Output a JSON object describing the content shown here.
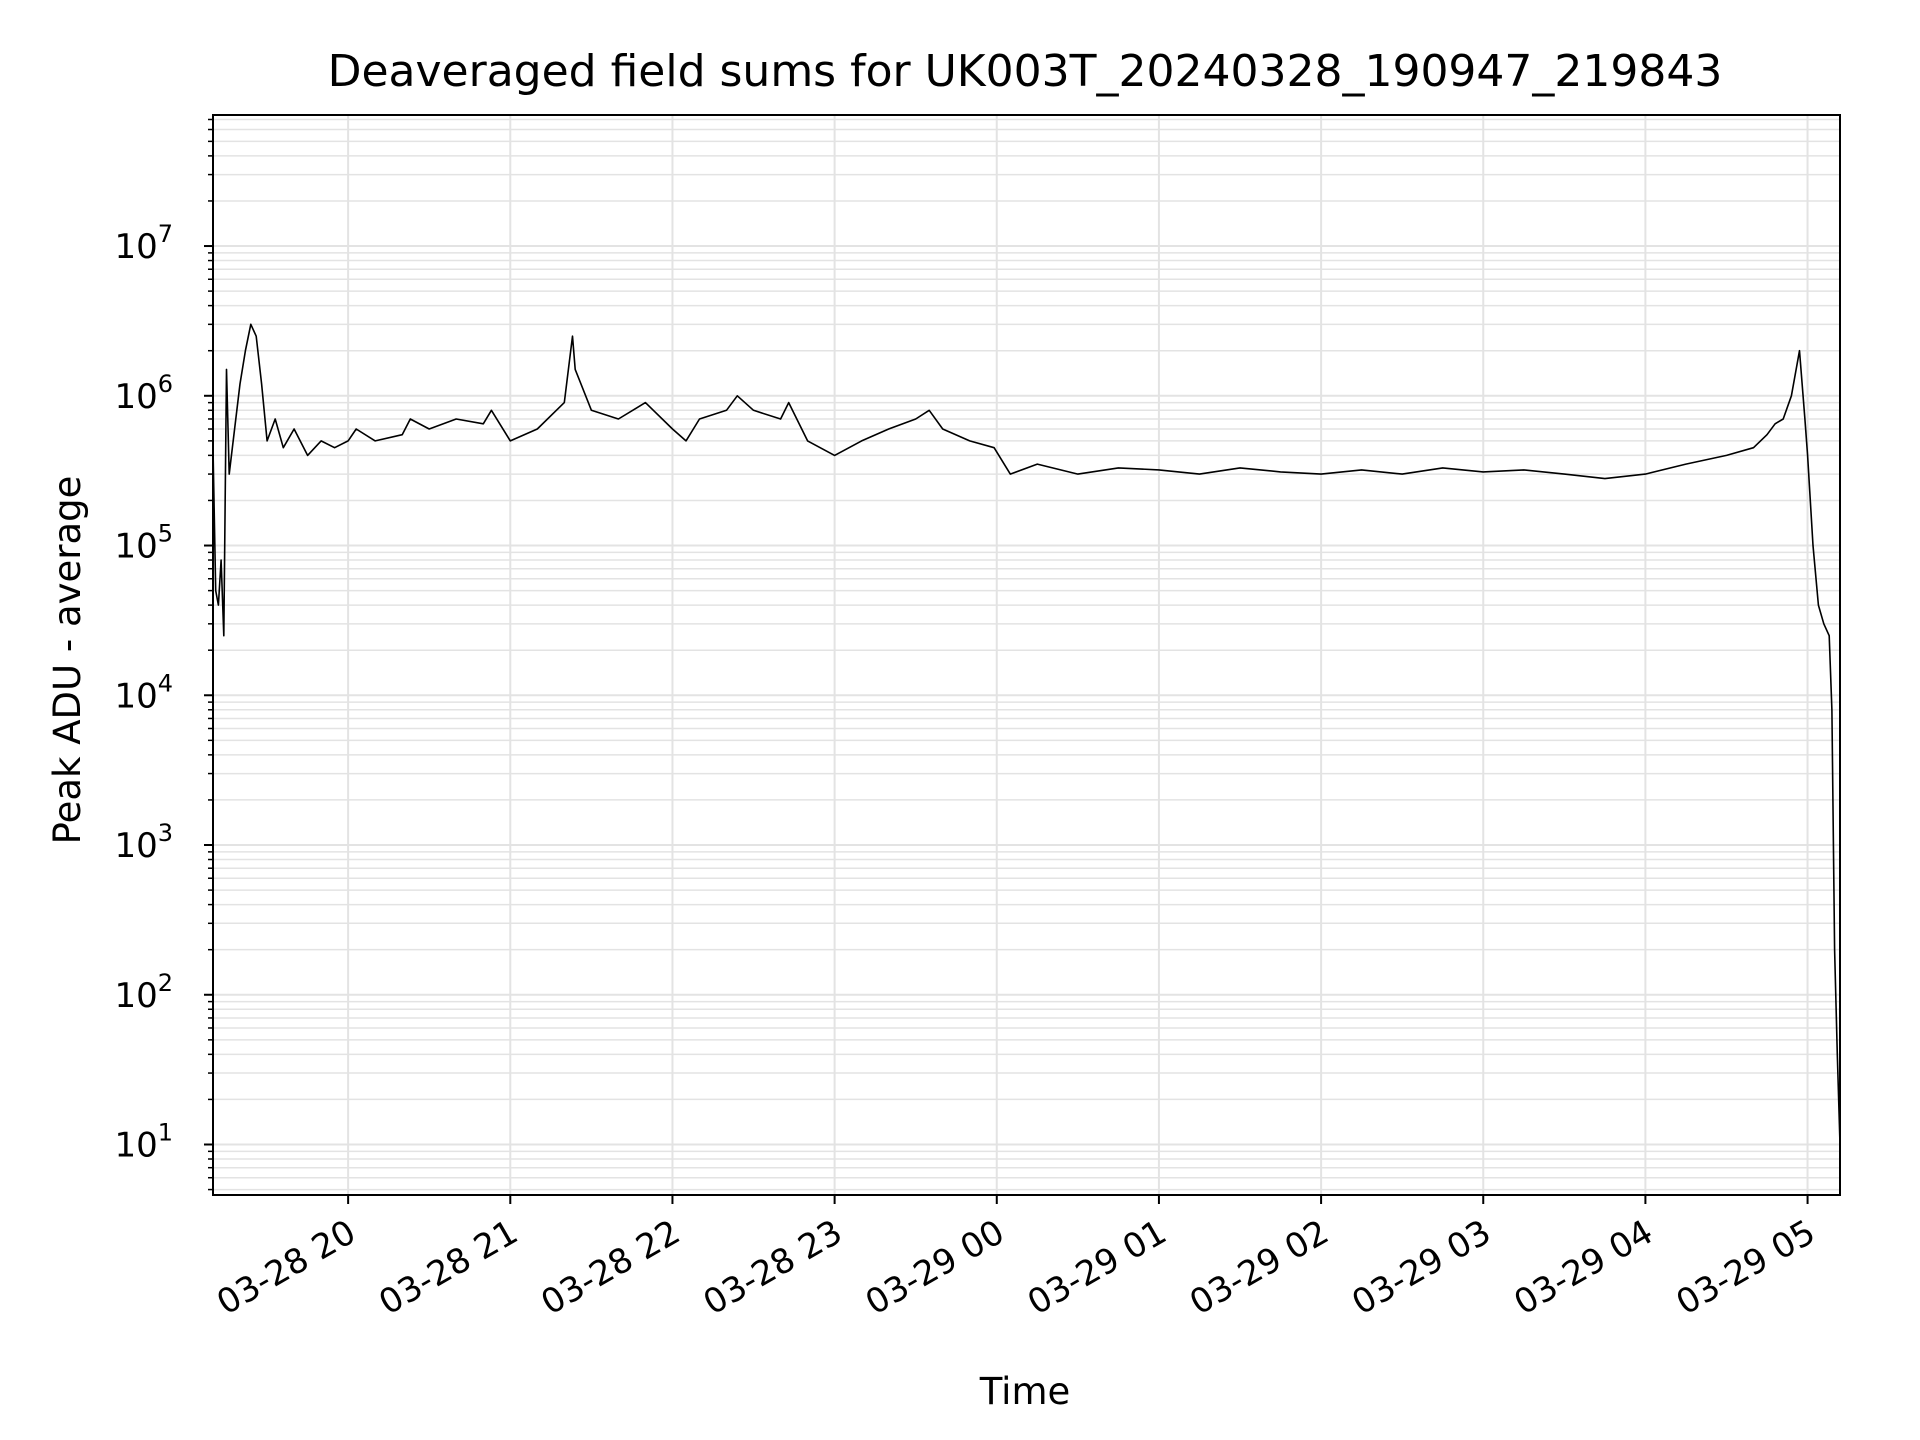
{
  "chart_data": {
    "type": "line",
    "title": "Deaveraged field sums for UK003T_20240328_190947_219843",
    "xlabel": "Time",
    "ylabel": "Peak ADU - average",
    "yscale": "log",
    "grid": true,
    "line_color": "#000000",
    "grid_color": "#e3e3e3",
    "xlim": [
      "2024-03-28T19:10",
      "2024-03-29T05:12"
    ],
    "ylim": [
      4.6,
      75000000
    ],
    "x_ticks": [
      {
        "value": "2024-03-28T20:00",
        "label": "03-28 20"
      },
      {
        "value": "2024-03-28T21:00",
        "label": "03-28 21"
      },
      {
        "value": "2024-03-28T22:00",
        "label": "03-28 22"
      },
      {
        "value": "2024-03-28T23:00",
        "label": "03-28 23"
      },
      {
        "value": "2024-03-29T00:00",
        "label": "03-29 00"
      },
      {
        "value": "2024-03-29T01:00",
        "label": "03-29 01"
      },
      {
        "value": "2024-03-29T02:00",
        "label": "03-29 02"
      },
      {
        "value": "2024-03-29T03:00",
        "label": "03-29 03"
      },
      {
        "value": "2024-03-29T04:00",
        "label": "03-29 04"
      },
      {
        "value": "2024-03-29T05:00",
        "label": "03-29 05"
      }
    ],
    "y_ticks": [
      {
        "value": 10,
        "base": "10",
        "exp": "1"
      },
      {
        "value": 100,
        "base": "10",
        "exp": "2"
      },
      {
        "value": 1000,
        "base": "10",
        "exp": "3"
      },
      {
        "value": 10000,
        "base": "10",
        "exp": "4"
      },
      {
        "value": 100000,
        "base": "10",
        "exp": "5"
      },
      {
        "value": 1000000,
        "base": "10",
        "exp": "6"
      },
      {
        "value": 10000000,
        "base": "10",
        "exp": "7"
      }
    ],
    "series": [
      {
        "x": [
          "2024-03-28T19:10",
          "2024-03-28T19:11",
          "2024-03-28T19:12",
          "2024-03-28T19:13",
          "2024-03-28T19:14",
          "2024-03-28T19:15",
          "2024-03-28T19:16",
          "2024-03-28T19:18",
          "2024-03-28T19:20",
          "2024-03-28T19:22",
          "2024-03-28T19:24",
          "2024-03-28T19:26",
          "2024-03-28T19:28",
          "2024-03-28T19:30",
          "2024-03-28T19:33",
          "2024-03-28T19:36",
          "2024-03-28T19:40",
          "2024-03-28T19:45",
          "2024-03-28T19:50",
          "2024-03-28T19:55",
          "2024-03-28T20:00",
          "2024-03-28T20:03",
          "2024-03-28T20:10",
          "2024-03-28T20:20",
          "2024-03-28T20:23",
          "2024-03-28T20:30",
          "2024-03-28T20:40",
          "2024-03-28T20:50",
          "2024-03-28T20:53",
          "2024-03-28T21:00",
          "2024-03-28T21:10",
          "2024-03-28T21:20",
          "2024-03-28T21:23",
          "2024-03-28T21:24",
          "2024-03-28T21:30",
          "2024-03-28T21:40",
          "2024-03-28T21:50",
          "2024-03-28T22:00",
          "2024-03-28T22:05",
          "2024-03-28T22:10",
          "2024-03-28T22:20",
          "2024-03-28T22:24",
          "2024-03-28T22:30",
          "2024-03-28T22:40",
          "2024-03-28T22:43",
          "2024-03-28T22:50",
          "2024-03-28T23:00",
          "2024-03-28T23:10",
          "2024-03-28T23:20",
          "2024-03-28T23:30",
          "2024-03-28T23:35",
          "2024-03-28T23:40",
          "2024-03-28T23:50",
          "2024-03-28T23:59",
          "2024-03-29T00:05",
          "2024-03-29T00:15",
          "2024-03-29T00:30",
          "2024-03-29T00:45",
          "2024-03-29T01:00",
          "2024-03-29T01:15",
          "2024-03-29T01:30",
          "2024-03-29T01:45",
          "2024-03-29T02:00",
          "2024-03-29T02:15",
          "2024-03-29T02:30",
          "2024-03-29T02:45",
          "2024-03-29T03:00",
          "2024-03-29T03:15",
          "2024-03-29T03:30",
          "2024-03-29T03:45",
          "2024-03-29T04:00",
          "2024-03-29T04:15",
          "2024-03-29T04:30",
          "2024-03-29T04:40",
          "2024-03-29T04:45",
          "2024-03-29T04:48",
          "2024-03-29T04:51",
          "2024-03-29T04:54",
          "2024-03-29T04:57",
          "2024-03-29T04:59",
          "2024-03-29T05:00",
          "2024-03-29T05:02",
          "2024-03-29T05:04",
          "2024-03-29T05:06",
          "2024-03-29T05:08",
          "2024-03-29T05:09",
          "2024-03-29T05:10",
          "2024-03-29T05:11",
          "2024-03-29T05:12"
        ],
        "y": [
          450000,
          50000,
          40000,
          80000,
          25000,
          1500000,
          300000,
          600000,
          1200000,
          2000000,
          3000000,
          2500000,
          1200000,
          500000,
          700000,
          450000,
          600000,
          400000,
          500000,
          450000,
          500000,
          600000,
          500000,
          550000,
          700000,
          600000,
          700000,
          650000,
          800000,
          500000,
          600000,
          900000,
          2500000,
          1500000,
          800000,
          700000,
          900000,
          600000,
          500000,
          700000,
          800000,
          1000000,
          800000,
          700000,
          900000,
          500000,
          400000,
          500000,
          600000,
          700000,
          800000,
          600000,
          500000,
          450000,
          300000,
          350000,
          300000,
          330000,
          320000,
          300000,
          330000,
          310000,
          300000,
          320000,
          300000,
          330000,
          310000,
          320000,
          300000,
          280000,
          300000,
          350000,
          400000,
          450000,
          550000,
          650000,
          700000,
          1000000,
          2000000,
          700000,
          400000,
          100000,
          40000,
          30000,
          25000,
          8000,
          200,
          40,
          10
        ]
      }
    ]
  }
}
